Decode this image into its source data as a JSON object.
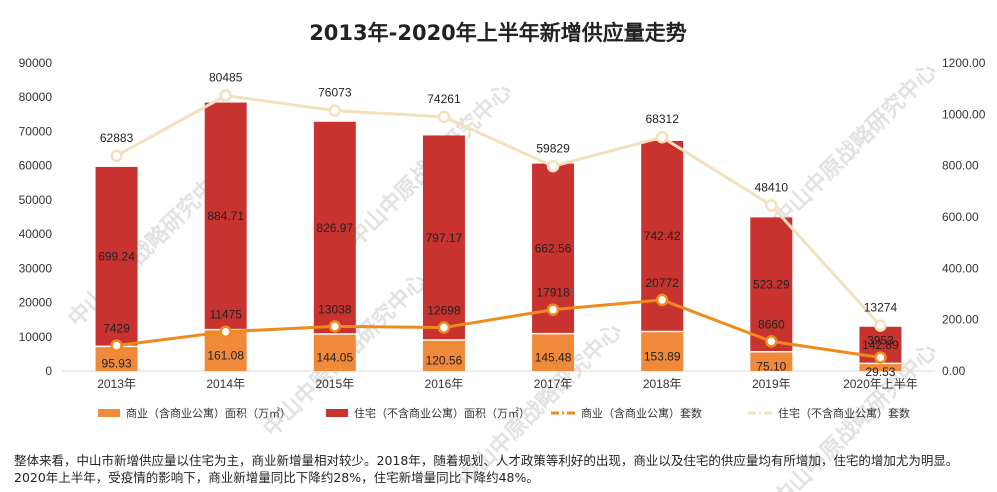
{
  "chart_data": {
    "type": "bar",
    "title": "2013年-2020年上半年新增供应量走势",
    "categories": [
      "2013年",
      "2014年",
      "2015年",
      "2016年",
      "2017年",
      "2018年",
      "2019年",
      "2020年上半年"
    ],
    "y_left_ticks": [
      "0",
      "10000",
      "20000",
      "30000",
      "40000",
      "50000",
      "60000",
      "70000",
      "80000",
      "90000"
    ],
    "y_right_ticks": [
      "0.00",
      "200.00",
      "400.00",
      "600.00",
      "800.00",
      "1000.00",
      "1200.00"
    ],
    "ylim_left": [
      0,
      90000
    ],
    "ylim_right": [
      0,
      1200
    ],
    "series": [
      {
        "name": "商业（含商业公寓）面积（万㎡）",
        "kind": "bar",
        "axis": "right",
        "color": "#f08a3a",
        "values": [
          95.93,
          161.08,
          144.05,
          120.56,
          145.48,
          153.89,
          75.1,
          29.53
        ],
        "labels": [
          "95.93",
          "161.08",
          "144.05",
          "120.56",
          "145.48",
          "153.89",
          "75.10",
          "29.53"
        ]
      },
      {
        "name": "住宅（不含商业公寓）面积（万㎡）",
        "kind": "bar",
        "axis": "right",
        "color": "#c8322f",
        "values": [
          699.24,
          884.71,
          826.97,
          797.17,
          662.56,
          742.42,
          523.29,
          142.89
        ],
        "labels": [
          "699.24",
          "884.71",
          "826.97",
          "797.17",
          "662.56",
          "742.42",
          "523.29",
          "142.89"
        ]
      },
      {
        "name": "商业（含商业公寓）套数",
        "kind": "line",
        "axis": "left",
        "color": "#ef8a1c",
        "values": [
          7429,
          11475,
          13038,
          12698,
          17918,
          20772,
          8660,
          3953
        ],
        "labels": [
          "7429",
          "11475",
          "13038",
          "12698",
          "17918",
          "20772",
          "8660",
          "3953"
        ]
      },
      {
        "name": "住宅（不含商业公寓）套数",
        "kind": "line",
        "axis": "left",
        "color": "#f3e0bd",
        "values": [
          62883,
          80485,
          76073,
          74261,
          59829,
          68312,
          48410,
          13274
        ],
        "labels": [
          "62883",
          "80485",
          "76073",
          "74261",
          "59829",
          "68312",
          "48410",
          "13274"
        ]
      }
    ]
  },
  "watermark": "中山中原战略研究中心",
  "note": "整体来看，中山市新增供应量以住宅为主，商业新增量相对较少。2018年，随着规划、人才政策等利好的出现，商业以及住宅的供应量均有所增加，住宅的增加尤为明显。2020年上半年，受疫情的影响下，商业新增量同比下降约28%，住宅新增量同比下降约48%。"
}
